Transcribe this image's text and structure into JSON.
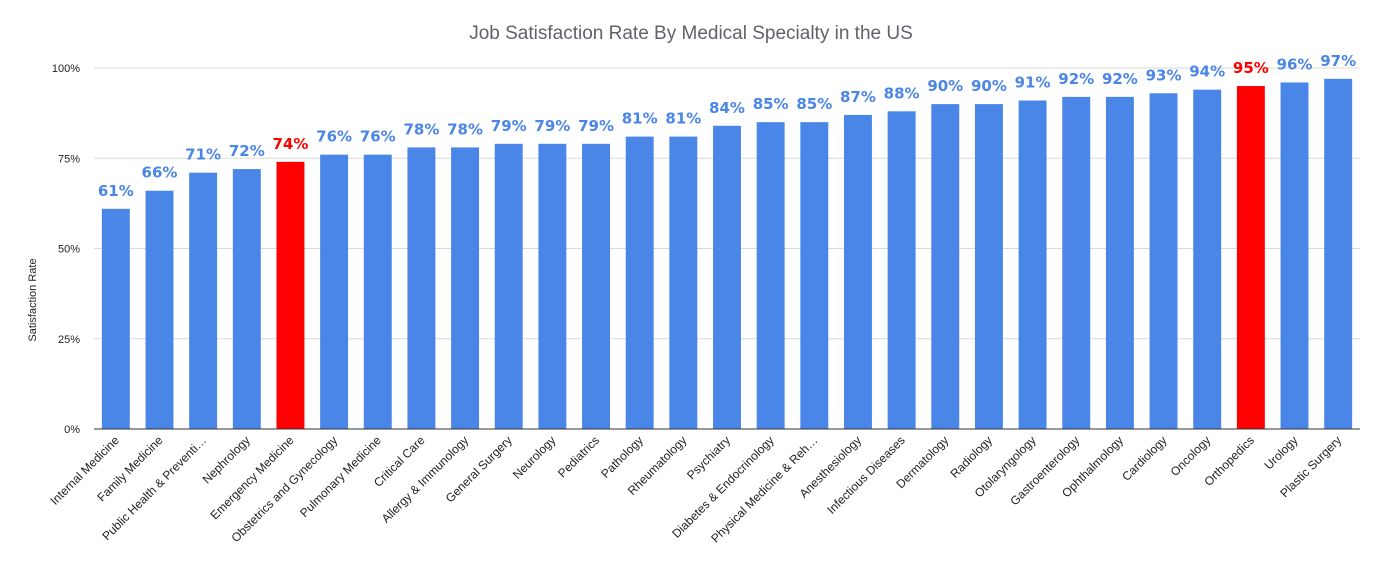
{
  "chart_data": {
    "type": "bar",
    "title": "Job Satisfaction Rate By Medical Specialty in the US",
    "xlabel": "",
    "ylabel": "Satisfaction Rate",
    "ylim": [
      0,
      100
    ],
    "yticks": [
      0,
      25,
      50,
      75,
      100
    ],
    "ytick_labels": [
      "0%",
      "25%",
      "50%",
      "75%",
      "100%"
    ],
    "grid": true,
    "categories": [
      "Internal Medicine",
      "Family Medicine",
      "Public Health & Preventi…",
      "Nephrology",
      "Emergency Medicine",
      "Obstetrics and Gynecology",
      "Pulmonary Medicine",
      "Critical Care",
      "Allergy & Immunology",
      "General Surgery",
      "Neurology",
      "Pediatrics",
      "Pathology",
      "Rheumatology",
      "Psychiatry",
      "Diabetes & Endocrinology",
      "Physical Medicine & Reh…",
      "Anesthesiology",
      "Infectious Diseases",
      "Dermatology",
      "Radiology",
      "Otolaryngology",
      "Gastroenterology",
      "Ophthalmology",
      "Cardiology",
      "Oncology",
      "Orthopedics",
      "Urology",
      "Plastic Surgery"
    ],
    "values": [
      61,
      66,
      71,
      72,
      74,
      76,
      76,
      78,
      78,
      79,
      79,
      79,
      81,
      81,
      84,
      85,
      85,
      87,
      88,
      90,
      90,
      91,
      92,
      92,
      93,
      94,
      95,
      96,
      97
    ],
    "data_labels": [
      "61%",
      "66%",
      "71%",
      "72%",
      "74%",
      "76%",
      "76%",
      "78%",
      "78%",
      "79%",
      "79%",
      "79%",
      "81%",
      "81%",
      "84%",
      "85%",
      "85%",
      "87%",
      "88%",
      "90%",
      "90%",
      "91%",
      "92%",
      "92%",
      "93%",
      "94%",
      "95%",
      "96%",
      "97%"
    ],
    "highlighted": [
      "Emergency Medicine",
      "Orthopedics"
    ],
    "colors": {
      "bar": "#4a86e8",
      "highlight": "#ff0000",
      "label": "#4a86e8",
      "highlight_label": "#ff0000"
    }
  }
}
